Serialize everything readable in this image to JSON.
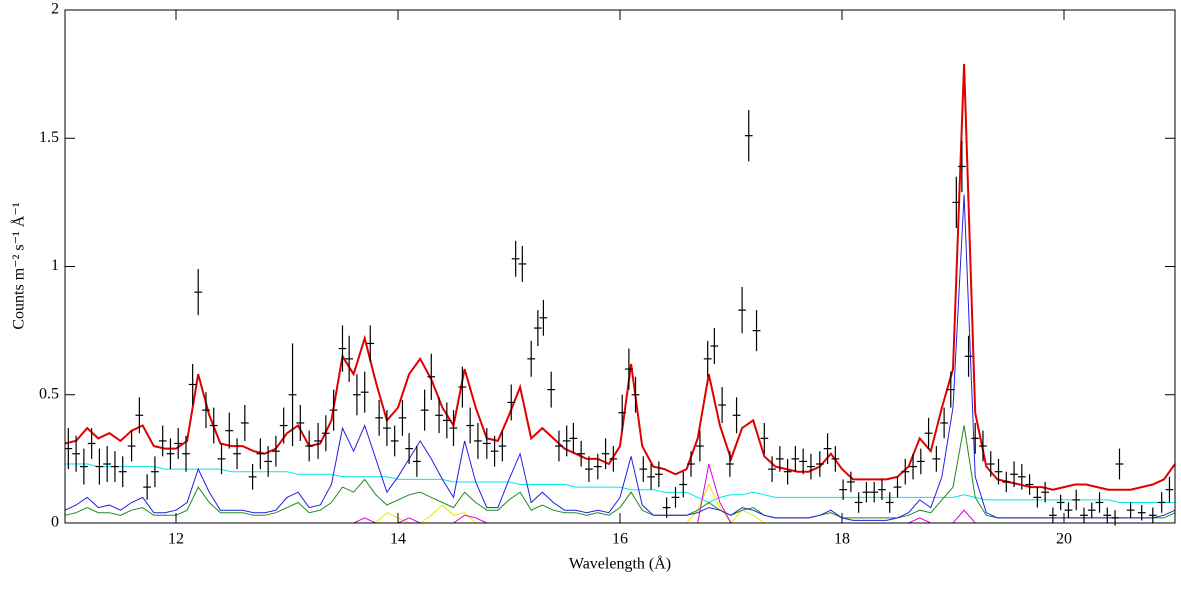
{
  "chart_data": {
    "type": "spectrum",
    "xlabel": "Wavelength (Å)",
    "ylabel": "Counts m⁻² s⁻¹ Å⁻¹",
    "xlim": [
      11,
      21
    ],
    "xticks": [
      12,
      14,
      16,
      18,
      20
    ],
    "ylim": [
      0,
      2
    ],
    "yticks": [
      0,
      0.5,
      1,
      1.5,
      2
    ],
    "x": [
      11,
      11.1,
      11.2,
      11.3,
      11.4,
      11.5,
      11.6,
      11.7,
      11.8,
      11.9,
      12,
      12.1,
      12.2,
      12.3,
      12.4,
      12.5,
      12.6,
      12.7,
      12.8,
      12.9,
      13,
      13.1,
      13.2,
      13.3,
      13.4,
      13.5,
      13.6,
      13.7,
      13.8,
      13.9,
      14,
      14.1,
      14.2,
      14.3,
      14.4,
      14.5,
      14.6,
      14.7,
      14.8,
      14.9,
      15,
      15.1,
      15.2,
      15.3,
      15.4,
      15.5,
      15.6,
      15.7,
      15.8,
      15.9,
      16,
      16.1,
      16.2,
      16.3,
      16.4,
      16.5,
      16.6,
      16.7,
      16.8,
      16.9,
      17,
      17.1,
      17.2,
      17.3,
      17.4,
      17.5,
      17.6,
      17.7,
      17.8,
      17.9,
      18,
      18.1,
      18.2,
      18.3,
      18.4,
      18.5,
      18.6,
      18.7,
      18.8,
      18.9,
      19,
      19.1,
      19.2,
      19.3,
      19.4,
      19.5,
      19.6,
      19.7,
      19.8,
      19.9,
      20,
      20.1,
      20.2,
      20.3,
      20.4,
      20.5,
      20.6,
      20.7,
      20.8,
      20.9,
      21
    ],
    "series": [
      {
        "color": "#00e8e8",
        "width": 1,
        "values": [
          0.23,
          0.23,
          0.23,
          0.22,
          0.22,
          0.22,
          0.22,
          0.22,
          0.22,
          0.21,
          0.21,
          0.21,
          0.21,
          0.21,
          0.21,
          0.2,
          0.2,
          0.2,
          0.2,
          0.2,
          0.2,
          0.19,
          0.19,
          0.19,
          0.19,
          0.18,
          0.18,
          0.18,
          0.18,
          0.18,
          0.17,
          0.17,
          0.17,
          0.17,
          0.17,
          0.16,
          0.16,
          0.16,
          0.16,
          0.16,
          0.16,
          0.15,
          0.15,
          0.15,
          0.15,
          0.15,
          0.14,
          0.14,
          0.14,
          0.14,
          0.14,
          0.13,
          0.13,
          0.13,
          0.12,
          0.12,
          0.12,
          0.1,
          0.08,
          0.1,
          0.11,
          0.11,
          0.12,
          0.11,
          0.1,
          0.1,
          0.1,
          0.1,
          0.1,
          0.1,
          0.1,
          0.1,
          0.1,
          0.1,
          0.1,
          0.1,
          0.1,
          0.1,
          0.1,
          0.1,
          0.1,
          0.11,
          0.1,
          0.09,
          0.09,
          0.09,
          0.09,
          0.09,
          0.09,
          0.09,
          0.09,
          0.09,
          0.09,
          0.09,
          0.09,
          0.08,
          0.08,
          0.08,
          0.08,
          0.08,
          0.08
        ]
      },
      {
        "color": "#e8e800",
        "width": 1,
        "values": [
          0,
          0,
          0,
          0,
          0,
          0,
          0,
          0,
          0,
          0,
          0,
          0,
          0,
          0,
          0,
          0,
          0,
          0,
          0,
          0,
          0,
          0,
          0,
          0,
          0,
          0,
          0,
          0,
          0,
          0.04,
          0.02,
          0,
          0,
          0.03,
          0.07,
          0.03,
          0.04,
          0,
          0,
          0,
          0,
          0,
          0,
          0,
          0,
          0,
          0,
          0,
          0,
          0,
          0,
          0,
          0,
          0,
          0,
          0,
          0,
          0.05,
          0.15,
          0.06,
          0,
          0.05,
          0.03,
          0,
          0,
          0,
          0,
          0,
          0,
          0,
          0,
          0,
          0,
          0,
          0,
          0,
          0,
          0,
          0,
          0,
          0,
          0,
          0,
          0,
          0,
          0,
          0,
          0,
          0,
          0,
          0,
          0,
          0,
          0,
          0,
          0,
          0,
          0,
          0,
          0,
          0
        ]
      },
      {
        "color": "#e000e0",
        "width": 1,
        "values": [
          0,
          0,
          0,
          0,
          0,
          0,
          0,
          0,
          0,
          0,
          0,
          0,
          0,
          0,
          0,
          0,
          0,
          0,
          0,
          0,
          0,
          0,
          0,
          0,
          0,
          0,
          0,
          0.02,
          0,
          0,
          0,
          0.02,
          0,
          0,
          0,
          0,
          0.03,
          0.02,
          0,
          0,
          0,
          0,
          0,
          0,
          0,
          0,
          0,
          0,
          0,
          0,
          0,
          0,
          0,
          0,
          0,
          0,
          0,
          0,
          0.23,
          0.08,
          0,
          0,
          0,
          0,
          0,
          0,
          0,
          0,
          0,
          0,
          0,
          0,
          0,
          0,
          0,
          0,
          0,
          0.02,
          0,
          0,
          0,
          0.05,
          0,
          0,
          0,
          0,
          0,
          0,
          0,
          0,
          0,
          0,
          0,
          0,
          0,
          0,
          0,
          0,
          0,
          0,
          0
        ]
      },
      {
        "color": "#208a20",
        "width": 1,
        "values": [
          0.03,
          0.04,
          0.06,
          0.04,
          0.04,
          0.03,
          0.05,
          0.06,
          0.03,
          0.03,
          0.03,
          0.05,
          0.14,
          0.08,
          0.04,
          0.04,
          0.04,
          0.03,
          0.03,
          0.04,
          0.06,
          0.08,
          0.04,
          0.05,
          0.08,
          0.14,
          0.12,
          0.17,
          0.11,
          0.07,
          0.09,
          0.11,
          0.12,
          0.1,
          0.08,
          0.06,
          0.12,
          0.08,
          0.05,
          0.05,
          0.09,
          0.12,
          0.05,
          0.07,
          0.05,
          0.04,
          0.04,
          0.03,
          0.04,
          0.03,
          0.06,
          0.12,
          0.05,
          0.03,
          0.03,
          0.03,
          0.03,
          0.05,
          0.08,
          0.05,
          0.03,
          0.05,
          0.06,
          0.03,
          0.02,
          0.02,
          0.02,
          0.02,
          0.03,
          0.04,
          0.02,
          0.02,
          0.02,
          0.02,
          0.02,
          0.02,
          0.03,
          0.05,
          0.04,
          0.09,
          0.14,
          0.38,
          0.1,
          0.03,
          0.02,
          0.02,
          0.02,
          0.02,
          0.02,
          0.02,
          0.02,
          0.02,
          0.02,
          0.02,
          0.02,
          0.02,
          0.02,
          0.02,
          0.02,
          0.02,
          0.04
        ]
      },
      {
        "color": "#2020e0",
        "width": 1,
        "values": [
          0.05,
          0.07,
          0.1,
          0.06,
          0.07,
          0.05,
          0.08,
          0.1,
          0.04,
          0.04,
          0.05,
          0.08,
          0.21,
          0.12,
          0.05,
          0.05,
          0.05,
          0.04,
          0.04,
          0.05,
          0.1,
          0.12,
          0.06,
          0.07,
          0.15,
          0.37,
          0.28,
          0.38,
          0.25,
          0.12,
          0.18,
          0.25,
          0.32,
          0.25,
          0.17,
          0.1,
          0.32,
          0.16,
          0.06,
          0.06,
          0.17,
          0.27,
          0.08,
          0.12,
          0.08,
          0.05,
          0.05,
          0.04,
          0.05,
          0.04,
          0.1,
          0.26,
          0.07,
          0.03,
          0.03,
          0.03,
          0.03,
          0.04,
          0.06,
          0.05,
          0.03,
          0.06,
          0.05,
          0.03,
          0.02,
          0.02,
          0.02,
          0.02,
          0.03,
          0.05,
          0.02,
          0.01,
          0.01,
          0.01,
          0.01,
          0.02,
          0.04,
          0.09,
          0.06,
          0.18,
          0.45,
          1.28,
          0.18,
          0.04,
          0.02,
          0.02,
          0.02,
          0.02,
          0.02,
          0.02,
          0.02,
          0.02,
          0.02,
          0.02,
          0.02,
          0.02,
          0.02,
          0.02,
          0.02,
          0.03,
          0.05
        ]
      },
      {
        "color": "#e00000",
        "width": 2,
        "values": [
          0.31,
          0.32,
          0.37,
          0.33,
          0.35,
          0.32,
          0.36,
          0.38,
          0.3,
          0.29,
          0.29,
          0.32,
          0.58,
          0.42,
          0.31,
          0.3,
          0.3,
          0.28,
          0.27,
          0.29,
          0.35,
          0.38,
          0.3,
          0.31,
          0.4,
          0.65,
          0.58,
          0.72,
          0.55,
          0.4,
          0.45,
          0.58,
          0.64,
          0.56,
          0.45,
          0.38,
          0.6,
          0.45,
          0.33,
          0.32,
          0.42,
          0.53,
          0.33,
          0.37,
          0.33,
          0.29,
          0.27,
          0.25,
          0.25,
          0.23,
          0.3,
          0.62,
          0.3,
          0.22,
          0.21,
          0.19,
          0.21,
          0.33,
          0.58,
          0.38,
          0.25,
          0.37,
          0.4,
          0.26,
          0.22,
          0.21,
          0.2,
          0.2,
          0.22,
          0.27,
          0.21,
          0.17,
          0.17,
          0.17,
          0.17,
          0.18,
          0.22,
          0.33,
          0.28,
          0.45,
          0.6,
          1.79,
          0.43,
          0.22,
          0.17,
          0.16,
          0.15,
          0.14,
          0.14,
          0.13,
          0.14,
          0.15,
          0.15,
          0.14,
          0.13,
          0.13,
          0.13,
          0.14,
          0.15,
          0.17,
          0.23
        ]
      }
    ],
    "points": {
      "color": "#000000",
      "xerr": 0.035,
      "x": [
        11.03,
        11.1,
        11.17,
        11.24,
        11.31,
        11.38,
        11.45,
        11.52,
        11.6,
        11.67,
        11.74,
        11.81,
        11.88,
        11.95,
        12.02,
        12.09,
        12.15,
        12.2,
        12.27,
        12.34,
        12.41,
        12.48,
        12.55,
        12.62,
        12.69,
        12.76,
        12.83,
        12.9,
        12.97,
        13.05,
        13.12,
        13.2,
        13.28,
        13.35,
        13.42,
        13.5,
        13.56,
        13.63,
        13.7,
        13.75,
        13.83,
        13.9,
        13.97,
        14.04,
        14.1,
        14.17,
        14.24,
        14.3,
        14.37,
        14.44,
        14.5,
        14.58,
        14.65,
        14.72,
        14.8,
        14.87,
        14.94,
        15.02,
        15.06,
        15.12,
        15.2,
        15.26,
        15.31,
        15.38,
        15.45,
        15.52,
        15.58,
        15.65,
        15.72,
        15.8,
        15.87,
        15.94,
        16.02,
        16.08,
        16.14,
        16.21,
        16.28,
        16.35,
        16.42,
        16.5,
        16.57,
        16.64,
        16.72,
        16.79,
        16.85,
        16.92,
        16.99,
        17.05,
        17.1,
        17.16,
        17.23,
        17.3,
        17.37,
        17.44,
        17.51,
        17.58,
        17.65,
        17.72,
        17.8,
        17.87,
        17.94,
        18.01,
        18.08,
        18.15,
        18.22,
        18.29,
        18.36,
        18.43,
        18.5,
        18.57,
        18.64,
        18.71,
        18.78,
        18.85,
        18.92,
        18.98,
        19.03,
        19.08,
        19.14,
        19.2,
        19.27,
        19.34,
        19.41,
        19.48,
        19.55,
        19.62,
        19.69,
        19.76,
        19.83,
        19.9,
        19.97,
        20.04,
        20.11,
        20.18,
        20.25,
        20.32,
        20.39,
        20.46,
        20.5,
        20.6,
        20.7,
        20.8,
        20.88,
        20.95
      ],
      "values": [
        0.29,
        0.27,
        0.22,
        0.31,
        0.22,
        0.23,
        0.22,
        0.2,
        0.3,
        0.42,
        0.14,
        0.2,
        0.32,
        0.27,
        0.31,
        0.27,
        0.54,
        0.9,
        0.44,
        0.38,
        0.25,
        0.36,
        0.27,
        0.39,
        0.18,
        0.27,
        0.24,
        0.28,
        0.38,
        0.5,
        0.39,
        0.3,
        0.32,
        0.35,
        0.44,
        0.68,
        0.64,
        0.5,
        0.51,
        0.7,
        0.41,
        0.37,
        0.32,
        0.41,
        0.29,
        0.24,
        0.44,
        0.57,
        0.42,
        0.4,
        0.37,
        0.53,
        0.38,
        0.32,
        0.31,
        0.28,
        0.3,
        0.47,
        1.03,
        1.01,
        0.64,
        0.76,
        0.8,
        0.52,
        0.3,
        0.32,
        0.33,
        0.27,
        0.21,
        0.22,
        0.27,
        0.25,
        0.43,
        0.6,
        0.5,
        0.21,
        0.18,
        0.19,
        0.06,
        0.1,
        0.15,
        0.23,
        0.3,
        0.64,
        0.69,
        0.46,
        0.23,
        0.42,
        0.83,
        1.51,
        0.75,
        0.33,
        0.21,
        0.25,
        0.2,
        0.25,
        0.24,
        0.22,
        0.23,
        0.29,
        0.25,
        0.13,
        0.16,
        0.08,
        0.12,
        0.12,
        0.13,
        0.08,
        0.14,
        0.2,
        0.22,
        0.24,
        0.35,
        0.25,
        0.39,
        0.52,
        1.25,
        1.39,
        0.65,
        0.33,
        0.3,
        0.23,
        0.2,
        0.16,
        0.19,
        0.18,
        0.15,
        0.1,
        0.12,
        0.03,
        0.08,
        0.05,
        0.09,
        0.03,
        0.05,
        0.08,
        0.03,
        0.02,
        0.23,
        0.05,
        0.04,
        0.03,
        0.08,
        0.13
      ],
      "errors": [
        0.08,
        0.07,
        0.07,
        0.06,
        0.07,
        0.07,
        0.06,
        0.06,
        0.06,
        0.07,
        0.05,
        0.06,
        0.06,
        0.06,
        0.06,
        0.07,
        0.08,
        0.09,
        0.07,
        0.07,
        0.06,
        0.07,
        0.06,
        0.07,
        0.05,
        0.06,
        0.06,
        0.06,
        0.07,
        0.2,
        0.07,
        0.06,
        0.07,
        0.07,
        0.08,
        0.09,
        0.09,
        0.08,
        0.08,
        0.07,
        0.07,
        0.07,
        0.06,
        0.07,
        0.06,
        0.06,
        0.08,
        0.09,
        0.07,
        0.07,
        0.07,
        0.08,
        0.07,
        0.07,
        0.06,
        0.06,
        0.06,
        0.07,
        0.07,
        0.07,
        0.07,
        0.07,
        0.07,
        0.07,
        0.06,
        0.06,
        0.06,
        0.05,
        0.05,
        0.05,
        0.06,
        0.05,
        0.07,
        0.08,
        0.07,
        0.05,
        0.05,
        0.05,
        0.04,
        0.04,
        0.05,
        0.05,
        0.06,
        0.07,
        0.07,
        0.07,
        0.05,
        0.07,
        0.09,
        0.1,
        0.08,
        0.06,
        0.05,
        0.05,
        0.05,
        0.05,
        0.05,
        0.05,
        0.05,
        0.06,
        0.05,
        0.04,
        0.04,
        0.04,
        0.04,
        0.04,
        0.04,
        0.04,
        0.04,
        0.05,
        0.05,
        0.05,
        0.06,
        0.05,
        0.06,
        0.07,
        0.1,
        0.1,
        0.08,
        0.06,
        0.06,
        0.05,
        0.05,
        0.04,
        0.05,
        0.05,
        0.04,
        0.04,
        0.04,
        0.03,
        0.03,
        0.03,
        0.04,
        0.03,
        0.03,
        0.04,
        0.03,
        0.03,
        0.06,
        0.03,
        0.03,
        0.03,
        0.04,
        0.05
      ]
    }
  }
}
